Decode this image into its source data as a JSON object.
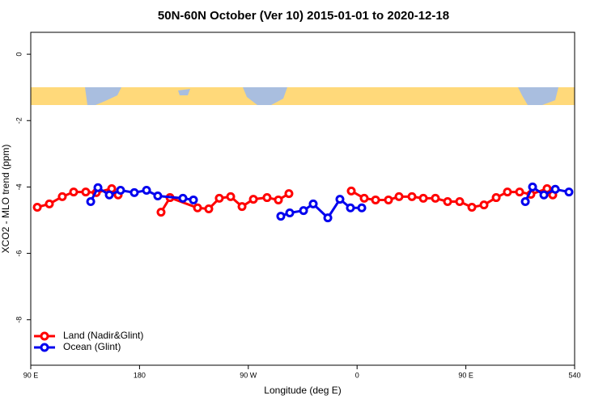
{
  "chart_data": {
    "type": "line",
    "title": "50N-60N October (Ver 10)   2015-01-01 to 2020-12-18",
    "x_label": "Longitude (deg E)",
    "y_label": "XCO2 - MLO trend (ppm)",
    "xlim": [
      90,
      540
    ],
    "xticks": [
      {
        "value": 90,
        "label": "90 E"
      },
      180,
      {
        "value": 270,
        "label": "90 W"
      },
      {
        "value": 360,
        "label": "0"
      },
      {
        "value": 450,
        "label": "90 E"
      },
      540
    ],
    "ylim": [
      -9.37,
      0.66
    ],
    "yticks": [
      0,
      -2,
      -4,
      -6,
      -8
    ],
    "legend": "bottom-left",
    "series": [
      {
        "name": "Land (Nadir&Glint)",
        "color": "#ff0000",
        "x": [
          95.4,
          105.4,
          116.1,
          125.5,
          135.5,
          144.2,
          157,
          162.3,
          null,
          197.8,
          205.2,
          228,
          237.3,
          246,
          255.4,
          264.8,
          274.2,
          285.5,
          294.9,
          303.6,
          null,
          355.2,
          365.9,
          375.3,
          386,
          394.7,
          405.4,
          414.8,
          424.8,
          434.9,
          444.9,
          455,
          465,
          475.1,
          484.4,
          494.5,
          503.8,
          517.2,
          521.9
        ],
        "values": [
          -4.61,
          -4.51,
          -4.29,
          -4.15,
          -4.15,
          -4.17,
          -4.05,
          -4.24,
          null,
          -4.76,
          -4.32,
          -4.63,
          -4.66,
          -4.34,
          -4.29,
          -4.59,
          -4.37,
          -4.32,
          -4.39,
          -4.2,
          null,
          -4.12,
          -4.34,
          -4.39,
          -4.39,
          -4.29,
          -4.29,
          -4.34,
          -4.34,
          -4.44,
          -4.44,
          -4.61,
          -4.54,
          -4.32,
          -4.15,
          -4.15,
          -4.22,
          -4.05,
          -4.24
        ]
      },
      {
        "name": "Ocean (Glint)",
        "color": "#0000ee",
        "x": [
          139.6,
          145.6,
          155,
          164.3,
          175.7,
          185.8,
          195.1,
          215.9,
          224.6,
          null,
          296.9,
          304.3,
          315.7,
          323.7,
          335.8,
          345.8,
          354.5,
          363.9,
          null,
          499.2,
          505.2,
          514.6,
          524,
          535.3
        ],
        "values": [
          -4.44,
          -4.02,
          -4.24,
          -4.1,
          -4.17,
          -4.1,
          -4.27,
          -4.34,
          -4.39,
          null,
          -4.88,
          -4.78,
          -4.71,
          -4.51,
          -4.93,
          -4.37,
          -4.63,
          -4.63,
          null,
          -4.44,
          -4.0,
          -4.24,
          -4.07,
          -4.15
        ]
      }
    ]
  }
}
